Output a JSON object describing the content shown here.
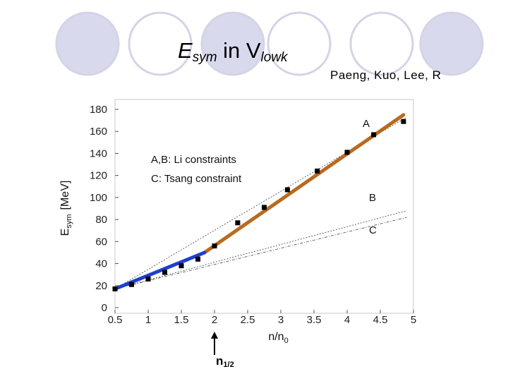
{
  "slide": {
    "title_main": "E",
    "title_sub1": "sym",
    "title_mid": " in V",
    "title_sub2": "lowk",
    "authors": "Paeng, Kuo, Lee, R",
    "marker_main": "n",
    "marker_sub": "1/2",
    "marker_x": 2
  },
  "colors": {
    "circle_fill": "#d9d9ee",
    "circle_stroke": "#d4d4e6",
    "thick_line_A": "#b96a1e",
    "thick_line_low": "#1f3fd0",
    "points": "#000000"
  },
  "chart_data": {
    "type": "line",
    "xlabel_main": "n/n",
    "xlabel_sub": "0",
    "ylabel_main": "E",
    "ylabel_sub": "sym",
    "ylabel_unit": "[MeV]",
    "xlim": [
      0.5,
      5
    ],
    "ylim": [
      0,
      180
    ],
    "xticks": [
      "0.5",
      "1",
      "1.5",
      "2",
      "2.5",
      "3",
      "3.5",
      "4",
      "4.5",
      "5"
    ],
    "yticks": [
      "0",
      "20",
      "40",
      "60",
      "80",
      "100",
      "120",
      "140",
      "160",
      "180"
    ],
    "annotations": [
      "A,B: Li constraints",
      "C: Tsang constraint",
      "A",
      "B",
      "C"
    ],
    "series": [
      {
        "x": [
          0.5,
          0.75,
          1.0,
          1.25,
          1.5,
          1.75,
          2.0,
          2.35,
          2.75,
          3.1,
          3.55,
          4.0,
          4.4,
          4.85
        ],
        "values": [
          17,
          21,
          26,
          32,
          38,
          44,
          56,
          77,
          91,
          107,
          124,
          141,
          157,
          169
        ]
      },
      {
        "x": [
          0.5,
          4.9
        ],
        "values": [
          17,
          173
        ]
      },
      {
        "x": [
          0.5,
          4.9
        ],
        "values": [
          17,
          88
        ]
      },
      {
        "x": [
          0.5,
          4.9
        ],
        "values": [
          17,
          82
        ]
      },
      {
        "x": [
          1.85,
          4.85
        ],
        "values": [
          50,
          175
        ]
      },
      {
        "x": [
          0.5,
          1.85
        ],
        "values": [
          17,
          50
        ]
      }
    ]
  }
}
